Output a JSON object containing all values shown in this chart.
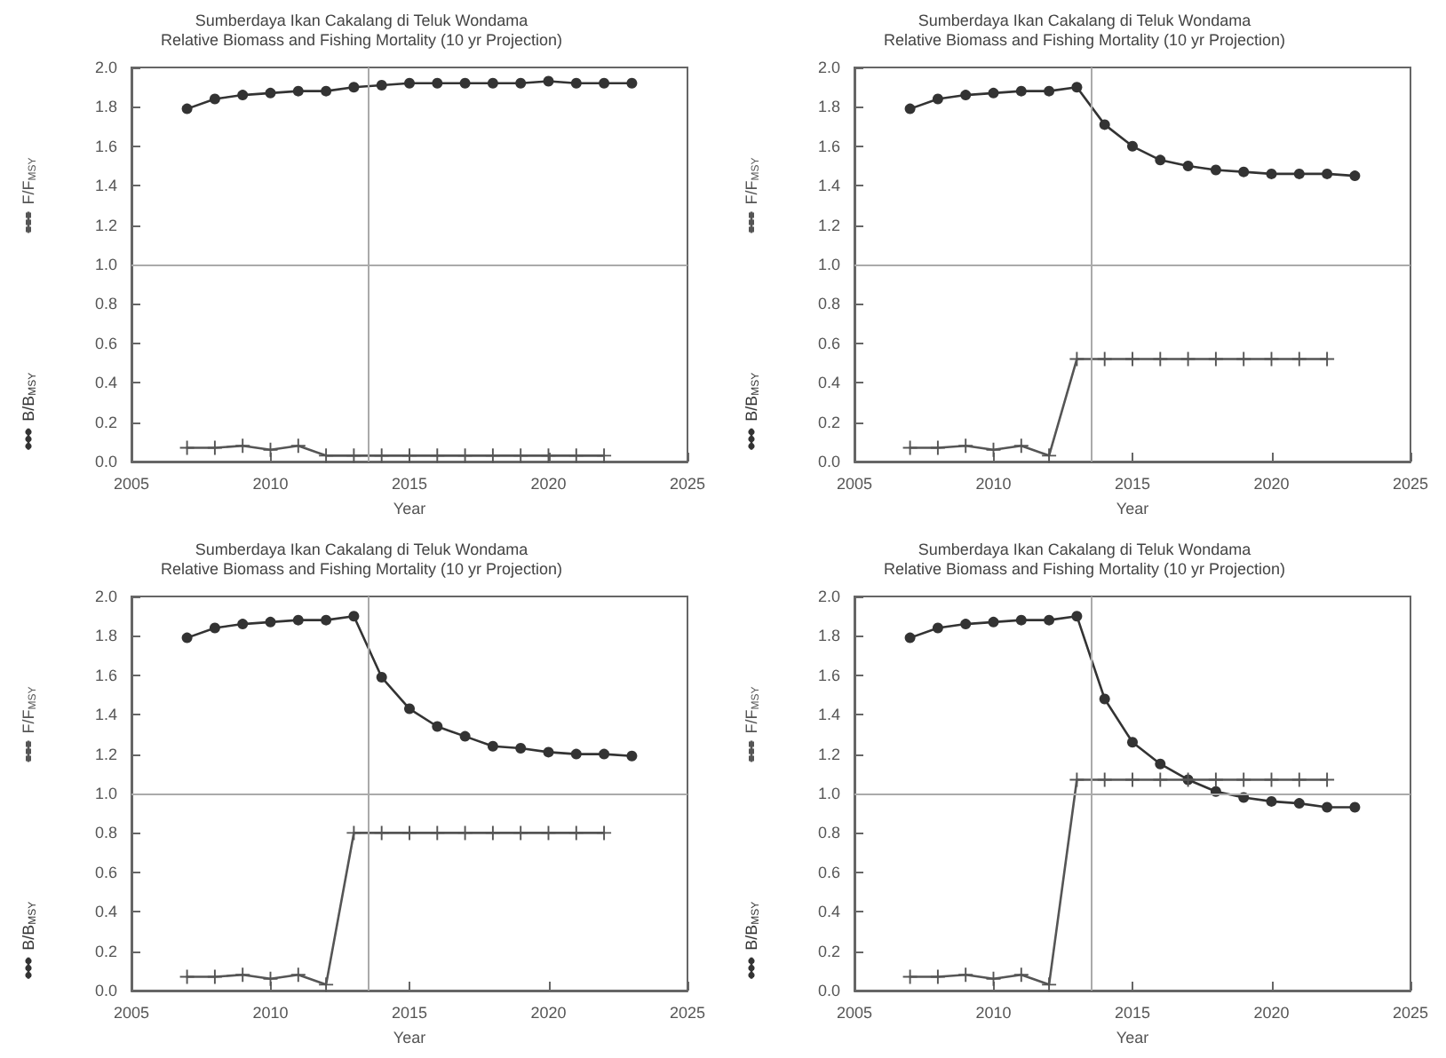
{
  "chart_data": [
    {
      "type": "line",
      "title": "Sumberdaya Ikan Cakalang di Teluk Wondama",
      "subtitle": "Relative Biomass and Fishing Mortality (10 yr Projection)",
      "xlabel": "Year",
      "legend": "left",
      "line_style": "solid",
      "grid": false,
      "xlim": [
        2005,
        2025
      ],
      "xticks": [
        2005,
        2010,
        2015,
        2020,
        2025
      ],
      "ylim": [
        0,
        2
      ],
      "yticks": [
        {
          "value": 0,
          "label": "0.0"
        },
        {
          "value": 0.2,
          "label": "0.2"
        },
        {
          "value": 0.4,
          "label": "0.4"
        },
        {
          "value": 0.6,
          "label": "0.6"
        },
        {
          "value": 0.8,
          "label": "0.8"
        },
        {
          "value": 1,
          "label": "1.0"
        },
        {
          "value": 1.2,
          "label": "1.2"
        },
        {
          "value": 1.4,
          "label": "1.4"
        },
        {
          "value": 1.6,
          "label": "1.6"
        },
        {
          "value": 1.8,
          "label": "1.8"
        },
        {
          "value": 2,
          "label": "2.0"
        }
      ],
      "ref_lines": [
        {
          "axis": "y",
          "value": 1,
          "color": "#aaaaaa"
        },
        {
          "axis": "x",
          "value": 2013.5,
          "color": "#aaaaaa"
        }
      ],
      "series": [
        {
          "name": "B/B$_{MSY}$",
          "color": "#333333",
          "marker": "circle",
          "x": [
            2007,
            2008,
            2009,
            2010,
            2011,
            2012,
            2013,
            2014,
            2015,
            2016,
            2017,
            2018,
            2019,
            2020,
            2021,
            2022,
            2023
          ],
          "values": [
            1.79,
            1.84,
            1.86,
            1.87,
            1.88,
            1.88,
            1.9,
            1.91,
            1.92,
            1.92,
            1.92,
            1.92,
            1.92,
            1.93,
            1.92,
            1.92,
            1.92
          ]
        },
        {
          "name": "F/F$_{MSY}$",
          "color": "#555555",
          "marker": "cross",
          "x": [
            2007,
            2008,
            2009,
            2010,
            2011,
            2012,
            2013,
            2014,
            2015,
            2016,
            2017,
            2018,
            2019,
            2020,
            2021,
            2022
          ],
          "values": [
            0.07,
            0.07,
            0.08,
            0.06,
            0.08,
            0.03,
            0.03,
            0.03,
            0.03,
            0.03,
            0.03,
            0.03,
            0.03,
            0.03,
            0.03,
            0.03
          ]
        }
      ]
    },
    {
      "type": "line",
      "title": "Sumberdaya Ikan Cakalang di Teluk Wondama",
      "subtitle": "Relative Biomass and Fishing Mortality (10 yr Projection)",
      "xlabel": "Year",
      "legend": "left",
      "line_style": "solid",
      "grid": false,
      "xlim": [
        2005,
        2025
      ],
      "xticks": [
        2005,
        2010,
        2015,
        2020,
        2025
      ],
      "ylim": [
        0,
        2
      ],
      "yticks": [
        {
          "value": 0,
          "label": "0.0"
        },
        {
          "value": 0.2,
          "label": "0.2"
        },
        {
          "value": 0.4,
          "label": "0.4"
        },
        {
          "value": 0.6,
          "label": "0.6"
        },
        {
          "value": 0.8,
          "label": "0.8"
        },
        {
          "value": 1,
          "label": "1.0"
        },
        {
          "value": 1.2,
          "label": "1.2"
        },
        {
          "value": 1.4,
          "label": "1.4"
        },
        {
          "value": 1.6,
          "label": "1.6"
        },
        {
          "value": 1.8,
          "label": "1.8"
        },
        {
          "value": 2,
          "label": "2.0"
        }
      ],
      "ref_lines": [
        {
          "axis": "y",
          "value": 1,
          "color": "#aaaaaa"
        },
        {
          "axis": "x",
          "value": 2013.5,
          "color": "#aaaaaa"
        }
      ],
      "series": [
        {
          "name": "B/B$_{MSY}$",
          "color": "#333333",
          "marker": "circle",
          "x": [
            2007,
            2008,
            2009,
            2010,
            2011,
            2012,
            2013,
            2014,
            2015,
            2016,
            2017,
            2018,
            2019,
            2020,
            2021,
            2022,
            2023
          ],
          "values": [
            1.79,
            1.84,
            1.86,
            1.87,
            1.88,
            1.88,
            1.9,
            1.71,
            1.6,
            1.53,
            1.5,
            1.48,
            1.47,
            1.46,
            1.46,
            1.46,
            1.45
          ]
        },
        {
          "name": "F/F$_{MSY}$",
          "color": "#555555",
          "marker": "cross",
          "x": [
            2007,
            2008,
            2009,
            2010,
            2011,
            2012,
            2013,
            2014,
            2015,
            2016,
            2017,
            2018,
            2019,
            2020,
            2021,
            2022
          ],
          "values": [
            0.07,
            0.07,
            0.08,
            0.06,
            0.08,
            0.03,
            0.52,
            0.52,
            0.52,
            0.52,
            0.52,
            0.52,
            0.52,
            0.52,
            0.52,
            0.52
          ]
        }
      ]
    },
    {
      "type": "line",
      "title": "Sumberdaya Ikan Cakalang di Teluk Wondama",
      "subtitle": "Relative Biomass and Fishing Mortality (10 yr Projection)",
      "xlabel": "Year",
      "legend": "left",
      "line_style": "solid",
      "grid": false,
      "xlim": [
        2005,
        2025
      ],
      "xticks": [
        2005,
        2010,
        2015,
        2020,
        2025
      ],
      "ylim": [
        0,
        2
      ],
      "yticks": [
        {
          "value": 0,
          "label": "0.0"
        },
        {
          "value": 0.2,
          "label": "0.2"
        },
        {
          "value": 0.4,
          "label": "0.4"
        },
        {
          "value": 0.6,
          "label": "0.6"
        },
        {
          "value": 0.8,
          "label": "0.8"
        },
        {
          "value": 1,
          "label": "1.0"
        },
        {
          "value": 1.2,
          "label": "1.2"
        },
        {
          "value": 1.4,
          "label": "1.4"
        },
        {
          "value": 1.6,
          "label": "1.6"
        },
        {
          "value": 1.8,
          "label": "1.8"
        },
        {
          "value": 2,
          "label": "2.0"
        }
      ],
      "ref_lines": [
        {
          "axis": "y",
          "value": 1,
          "color": "#aaaaaa"
        },
        {
          "axis": "x",
          "value": 2013.5,
          "color": "#aaaaaa"
        }
      ],
      "series": [
        {
          "name": "B/B$_{MSY}$",
          "color": "#333333",
          "marker": "circle",
          "x": [
            2007,
            2008,
            2009,
            2010,
            2011,
            2012,
            2013,
            2014,
            2015,
            2016,
            2017,
            2018,
            2019,
            2020,
            2021,
            2022,
            2023
          ],
          "values": [
            1.79,
            1.84,
            1.86,
            1.87,
            1.88,
            1.88,
            1.9,
            1.59,
            1.43,
            1.34,
            1.29,
            1.24,
            1.23,
            1.21,
            1.2,
            1.2,
            1.19
          ]
        },
        {
          "name": "F/F$_{MSY}$",
          "color": "#555555",
          "marker": "cross",
          "x": [
            2007,
            2008,
            2009,
            2010,
            2011,
            2012,
            2013,
            2014,
            2015,
            2016,
            2017,
            2018,
            2019,
            2020,
            2021,
            2022
          ],
          "values": [
            0.07,
            0.07,
            0.08,
            0.06,
            0.08,
            0.03,
            0.8,
            0.8,
            0.8,
            0.8,
            0.8,
            0.8,
            0.8,
            0.8,
            0.8,
            0.8
          ]
        }
      ]
    },
    {
      "type": "line",
      "title": "Sumberdaya Ikan Cakalang di Teluk Wondama",
      "subtitle": "Relative Biomass and Fishing Mortality (10 yr Projection)",
      "xlabel": "Year",
      "legend": "left",
      "line_style": "solid",
      "grid": false,
      "xlim": [
        2005,
        2025
      ],
      "xticks": [
        2005,
        2010,
        2015,
        2020,
        2025
      ],
      "ylim": [
        0,
        2
      ],
      "yticks": [
        {
          "value": 0,
          "label": "0.0"
        },
        {
          "value": 0.2,
          "label": "0.2"
        },
        {
          "value": 0.4,
          "label": "0.4"
        },
        {
          "value": 0.6,
          "label": "0.6"
        },
        {
          "value": 0.8,
          "label": "0.8"
        },
        {
          "value": 1,
          "label": "1.0"
        },
        {
          "value": 1.2,
          "label": "1.2"
        },
        {
          "value": 1.4,
          "label": "1.4"
        },
        {
          "value": 1.6,
          "label": "1.6"
        },
        {
          "value": 1.8,
          "label": "1.8"
        },
        {
          "value": 2,
          "label": "2.0"
        }
      ],
      "ref_lines": [
        {
          "axis": "y",
          "value": 1,
          "color": "#aaaaaa"
        },
        {
          "axis": "x",
          "value": 2013.5,
          "color": "#aaaaaa"
        }
      ],
      "series": [
        {
          "name": "B/B$_{MSY}$",
          "color": "#333333",
          "marker": "circle",
          "x": [
            2007,
            2008,
            2009,
            2010,
            2011,
            2012,
            2013,
            2014,
            2015,
            2016,
            2017,
            2018,
            2019,
            2020,
            2021,
            2022,
            2023
          ],
          "values": [
            1.79,
            1.84,
            1.86,
            1.87,
            1.88,
            1.88,
            1.9,
            1.48,
            1.26,
            1.15,
            1.07,
            1.01,
            0.98,
            0.96,
            0.95,
            0.93,
            0.93
          ]
        },
        {
          "name": "F/F$_{MSY}$",
          "color": "#555555",
          "marker": "cross",
          "x": [
            2007,
            2008,
            2009,
            2010,
            2011,
            2012,
            2013,
            2014,
            2015,
            2016,
            2017,
            2018,
            2019,
            2020,
            2021,
            2022
          ],
          "values": [
            0.07,
            0.07,
            0.08,
            0.06,
            0.08,
            0.03,
            1.07,
            1.07,
            1.07,
            1.07,
            1.07,
            1.07,
            1.07,
            1.07,
            1.07,
            1.07
          ]
        }
      ]
    }
  ]
}
